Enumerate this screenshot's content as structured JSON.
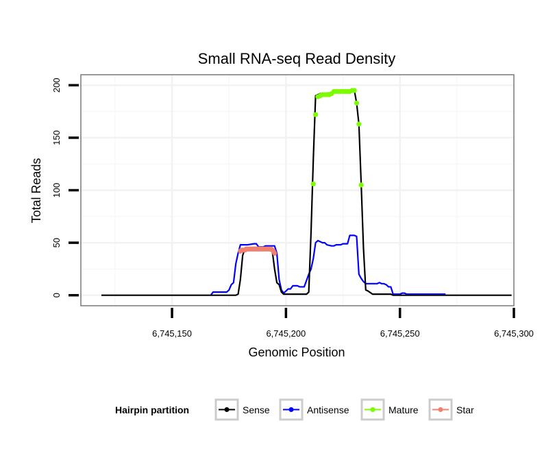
{
  "chart_data": {
    "type": "line",
    "title": "Small RNA-seq Read Density",
    "xlabel": "Genomic Position",
    "ylabel": "Total Reads",
    "xlim": [
      6745110,
      6745300
    ],
    "ylim": [
      -10,
      210
    ],
    "x_ticks": [
      6745150,
      6745200,
      6745250,
      6745300
    ],
    "x_tick_labels": [
      "6,745,150",
      "6,745,200",
      "6,745,250",
      "6,745,300"
    ],
    "y_ticks": [
      0,
      50,
      100,
      150,
      200
    ],
    "y_tick_labels": [
      "0",
      "50",
      "100",
      "150",
      "200"
    ],
    "grid": true,
    "legend": {
      "title": "Hairpin partition",
      "placement": "bottom",
      "entries": [
        "Sense",
        "Antisense",
        "Mature",
        "Star"
      ]
    },
    "series": [
      {
        "name": "Sense",
        "color": "#000000",
        "style": "line",
        "x": [
          6745119,
          6745178,
          6745179,
          6745180,
          6745181,
          6745182,
          6745193,
          6745194,
          6745195,
          6745196,
          6745197,
          6745198,
          6745199,
          6745209,
          6745210,
          6745211,
          6745212,
          6745213,
          6745214,
          6745215,
          6745216,
          6745230,
          6745231,
          6745232,
          6745233,
          6745234,
          6745235,
          6745236,
          6745238,
          6745246,
          6745247,
          6745299
        ],
        "y": [
          0,
          0,
          1,
          15,
          38,
          44,
          44,
          42,
          25,
          12,
          10,
          3,
          1,
          1,
          3,
          60,
          130,
          190,
          191,
          192,
          192,
          195,
          183,
          163,
          106,
          45,
          5,
          4,
          1,
          1,
          0,
          0
        ]
      },
      {
        "name": "Antisense",
        "color": "#0000ff",
        "style": "line",
        "x": [
          6745167,
          6745168,
          6745174,
          6745175,
          6745176,
          6745177,
          6745178,
          6745179,
          6745180,
          6745181,
          6745182,
          6745183,
          6745186,
          6745187,
          6745188,
          6745190,
          6745191,
          6745195,
          6745196,
          6745197,
          6745198,
          6745199,
          6745200,
          6745201,
          6745202,
          6745203,
          6745205,
          6745206,
          6745208,
          6745209,
          6745210,
          6745211,
          6745212,
          6745213,
          6745214,
          6745215,
          6745216,
          6745217,
          6745218,
          6745220,
          6745221,
          6745222,
          6745224,
          6745225,
          6745227,
          6745228,
          6745229,
          6745230,
          6745231,
          6745232,
          6745233,
          6745234,
          6745235,
          6745240,
          6745241,
          6745242,
          6745243,
          6745244,
          6745245,
          6745246,
          6745247,
          6745250,
          6745251,
          6745252,
          6745253,
          6745255,
          6745256,
          6745270
        ],
        "y": [
          0,
          3,
          3,
          5,
          10,
          12,
          30,
          40,
          48,
          48,
          48,
          48,
          49,
          49,
          46,
          46,
          47,
          47,
          40,
          15,
          5,
          2,
          4,
          6,
          6,
          9,
          9,
          8,
          8,
          14,
          20,
          25,
          35,
          50,
          52,
          51,
          50,
          50,
          48,
          47,
          47,
          48,
          48,
          49,
          49,
          57,
          57,
          57,
          56,
          20,
          16,
          13,
          11,
          11,
          12,
          11,
          11,
          10,
          8,
          8,
          1,
          1,
          2,
          2,
          1,
          1,
          1,
          1
        ]
      },
      {
        "name": "Mature",
        "color": "#7cfc00",
        "style": "points",
        "x": [
          6745212,
          6745213,
          6745214,
          6745215,
          6745216,
          6745217,
          6745218,
          6745219,
          6745220,
          6745221,
          6745222,
          6745223,
          6745224,
          6745225,
          6745226,
          6745227,
          6745228,
          6745229,
          6745230,
          6745231,
          6745232,
          6745233
        ],
        "y": [
          106,
          172,
          189,
          190,
          191,
          191,
          191,
          191,
          192,
          194,
          194,
          194,
          194,
          194,
          194,
          194,
          194,
          195,
          195,
          183,
          163,
          105
        ]
      },
      {
        "name": "Star",
        "color": "#f08070",
        "style": "points",
        "x": [
          6745180,
          6745180.5,
          6745181,
          6745181.5,
          6745182,
          6745182.5,
          6745183,
          6745183.5,
          6745184,
          6745184.5,
          6745185,
          6745185.5,
          6745186,
          6745186.5,
          6745187,
          6745187.5,
          6745188,
          6745188.5,
          6745189,
          6745189.5,
          6745190,
          6745190.5,
          6745191,
          6745191.5,
          6745192,
          6745192.5,
          6745193,
          6745193.5,
          6745194,
          6745194.5,
          6745195
        ],
        "y": [
          42,
          43,
          43,
          43,
          43,
          44,
          44,
          44,
          44,
          44,
          44,
          44,
          44,
          44,
          44,
          44,
          44,
          44,
          44,
          44,
          44,
          44,
          44,
          44,
          44,
          44,
          44,
          44,
          43,
          42,
          40
        ]
      }
    ]
  }
}
